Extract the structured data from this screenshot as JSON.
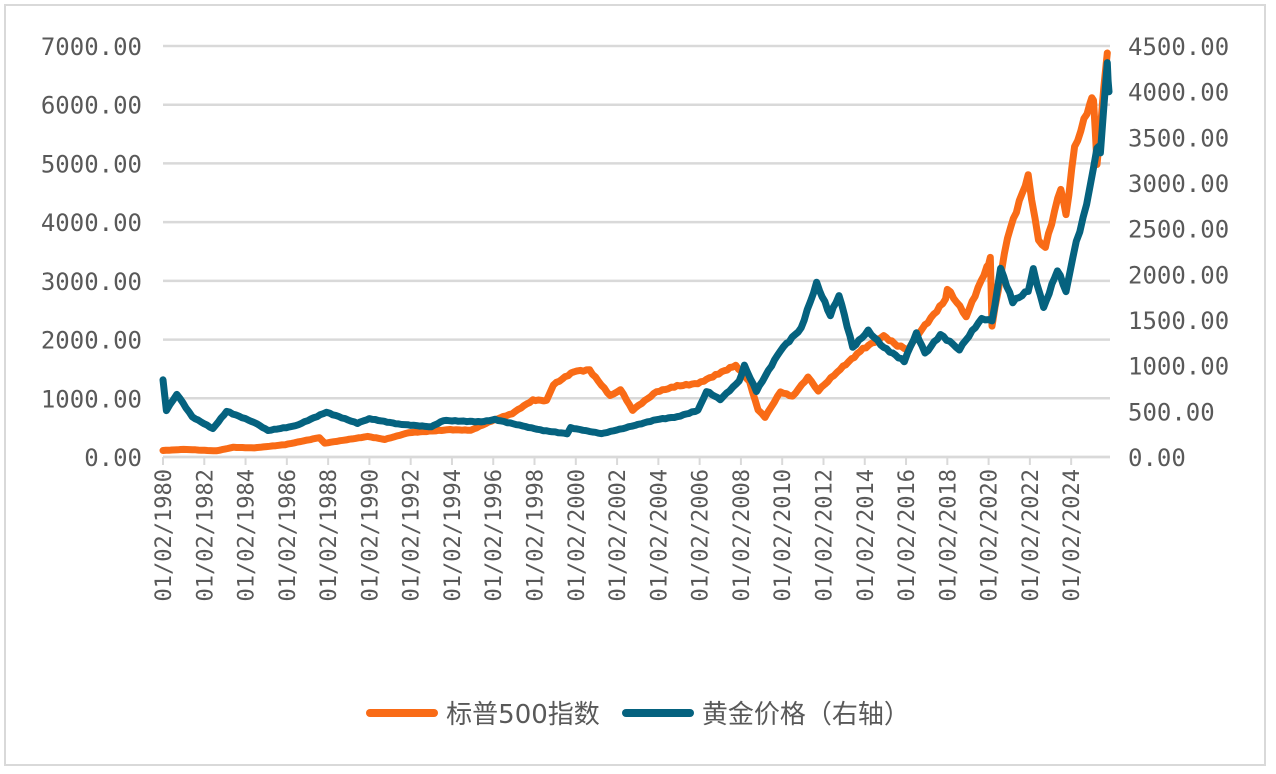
{
  "chart_data": {
    "type": "line",
    "title": "",
    "xlabel": "",
    "ylabel": "",
    "grid": true,
    "legend_position": "bottom",
    "y_left": {
      "range": [
        0,
        7000
      ],
      "ticks": [
        "0.00",
        "1000.00",
        "2000.00",
        "3000.00",
        "4000.00",
        "5000.00",
        "6000.00",
        "7000.00"
      ]
    },
    "y_right": {
      "range": [
        0,
        4500
      ],
      "ticks": [
        "0.00",
        "500.00",
        "1000.00",
        "1500.00",
        "2000.00",
        "2500.00",
        "3000.00",
        "3500.00",
        "4000.00",
        "4500.00"
      ]
    },
    "x_ticks": [
      "01/02/1980",
      "01/02/1982",
      "01/02/1984",
      "01/02/1986",
      "01/02/1988",
      "01/02/1990",
      "01/02/1992",
      "01/02/1994",
      "01/02/1996",
      "01/02/1998",
      "01/02/2000",
      "01/02/2002",
      "01/02/2004",
      "01/02/2006",
      "01/02/2008",
      "01/02/2010",
      "01/02/2012",
      "01/02/2014",
      "01/02/2016",
      "01/02/2018",
      "01/02/2020",
      "01/02/2022",
      "01/02/2024"
    ],
    "series": [
      {
        "name": "标普500指数",
        "axis": "left",
        "color": "#f96b16",
        "points": [
          [
            "1980-01",
            110
          ],
          [
            "1981-01",
            130
          ],
          [
            "1982-08",
            105
          ],
          [
            "1983-06",
            165
          ],
          [
            "1984-06",
            155
          ],
          [
            "1985-12",
            210
          ],
          [
            "1987-08",
            330
          ],
          [
            "1987-11",
            235
          ],
          [
            "1989-12",
            350
          ],
          [
            "1990-10",
            300
          ],
          [
            "1991-12",
            415
          ],
          [
            "1993-12",
            465
          ],
          [
            "1994-12",
            455
          ],
          [
            "1995-12",
            615
          ],
          [
            "1996-12",
            740
          ],
          [
            "1997-12",
            970
          ],
          [
            "1998-08",
            960
          ],
          [
            "1998-12",
            1230
          ],
          [
            "1999-12",
            1460
          ],
          [
            "2000-09",
            1480
          ],
          [
            "2001-09",
            1040
          ],
          [
            "2002-03",
            1150
          ],
          [
            "2002-10",
            800
          ],
          [
            "2003-12",
            1110
          ],
          [
            "2004-12",
            1210
          ],
          [
            "2005-12",
            1250
          ],
          [
            "2006-12",
            1420
          ],
          [
            "2007-10",
            1560
          ],
          [
            "2008-06",
            1280
          ],
          [
            "2008-11",
            800
          ],
          [
            "2009-03",
            680
          ],
          [
            "2009-12",
            1110
          ],
          [
            "2010-07",
            1030
          ],
          [
            "2011-04",
            1360
          ],
          [
            "2011-10",
            1130
          ],
          [
            "2012-09",
            1450
          ],
          [
            "2013-12",
            1840
          ],
          [
            "2014-12",
            2060
          ],
          [
            "2015-08",
            1900
          ],
          [
            "2016-02",
            1830
          ],
          [
            "2016-12",
            2240
          ],
          [
            "2017-12",
            2680
          ],
          [
            "2018-01",
            2870
          ],
          [
            "2018-12",
            2400
          ],
          [
            "2019-12",
            3230
          ],
          [
            "2020-02",
            3380
          ],
          [
            "2020-03",
            2240
          ],
          [
            "2020-12",
            3750
          ],
          [
            "2021-12",
            4790
          ],
          [
            "2022-06",
            3670
          ],
          [
            "2022-10",
            3580
          ],
          [
            "2023-07",
            4590
          ],
          [
            "2023-10",
            4120
          ],
          [
            "2024-03",
            5250
          ],
          [
            "2024-12",
            6040
          ],
          [
            "2025-02",
            6120
          ],
          [
            "2025-04",
            4980
          ],
          [
            "2025-10",
            6880
          ]
        ]
      },
      {
        "name": "黄金价格（右轴）",
        "axis": "right",
        "color": "#05627f",
        "points": [
          [
            "1980-01",
            840
          ],
          [
            "1980-03",
            510
          ],
          [
            "1980-09",
            690
          ],
          [
            "1981-06",
            440
          ],
          [
            "1982-06",
            310
          ],
          [
            "1983-02",
            500
          ],
          [
            "1984-06",
            380
          ],
          [
            "1985-02",
            290
          ],
          [
            "1986-06",
            340
          ],
          [
            "1987-12",
            490
          ],
          [
            "1989-06",
            370
          ],
          [
            "1990-01",
            420
          ],
          [
            "1991-06",
            360
          ],
          [
            "1993-01",
            330
          ],
          [
            "1993-08",
            400
          ],
          [
            "1995-06",
            385
          ],
          [
            "1996-02",
            410
          ],
          [
            "1997-06",
            340
          ],
          [
            "1998-06",
            290
          ],
          [
            "1999-08",
            255
          ],
          [
            "1999-10",
            320
          ],
          [
            "2001-04",
            255
          ],
          [
            "2002-06",
            320
          ],
          [
            "2003-12",
            410
          ],
          [
            "2004-12",
            440
          ],
          [
            "2005-12",
            510
          ],
          [
            "2006-05",
            720
          ],
          [
            "2007-01",
            630
          ],
          [
            "2007-12",
            830
          ],
          [
            "2008-03",
            1000
          ],
          [
            "2008-10",
            720
          ],
          [
            "2009-12",
            1170
          ],
          [
            "2010-12",
            1410
          ],
          [
            "2011-09",
            1900
          ],
          [
            "2012-05",
            1550
          ],
          [
            "2012-10",
            1780
          ],
          [
            "2013-06",
            1200
          ],
          [
            "2014-03",
            1380
          ],
          [
            "2014-12",
            1200
          ],
          [
            "2015-12",
            1050
          ],
          [
            "2016-07",
            1360
          ],
          [
            "2016-12",
            1130
          ],
          [
            "2017-09",
            1340
          ],
          [
            "2018-08",
            1180
          ],
          [
            "2019-09",
            1520
          ],
          [
            "2020-03",
            1480
          ],
          [
            "2020-08",
            2060
          ],
          [
            "2021-03",
            1700
          ],
          [
            "2021-12",
            1820
          ],
          [
            "2022-03",
            2050
          ],
          [
            "2022-09",
            1630
          ],
          [
            "2023-05",
            2050
          ],
          [
            "2023-10",
            1820
          ],
          [
            "2024-04",
            2350
          ],
          [
            "2024-10",
            2750
          ],
          [
            "2025-04",
            3400
          ],
          [
            "2025-06",
            3350
          ],
          [
            "2025-10",
            4300
          ],
          [
            "2025-11",
            4000
          ]
        ]
      }
    ]
  }
}
